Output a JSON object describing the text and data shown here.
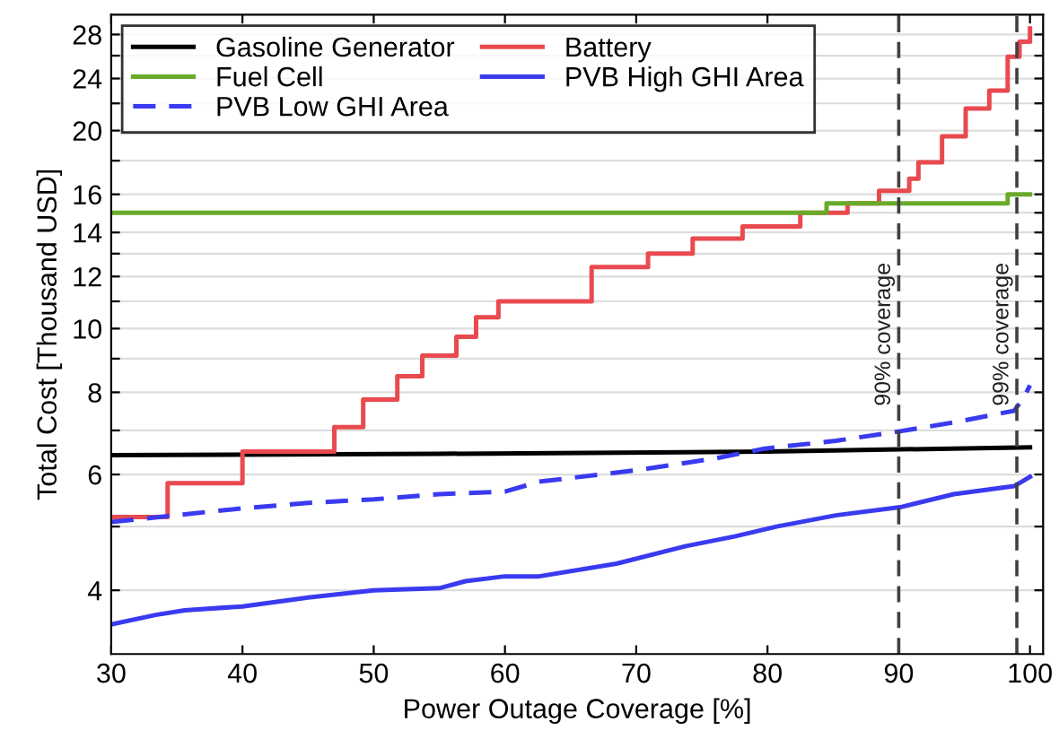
{
  "chart_data": {
    "type": "step",
    "xlabel": "Power Outage Coverage [%]",
    "ylabel": "Total Cost [Thousand USD]",
    "xlim": [
      30,
      101
    ],
    "xticks": [
      30,
      40,
      50,
      60,
      70,
      80,
      90,
      100
    ],
    "log": "y",
    "ylim": [
      3.2,
      30
    ],
    "yticks": [
      4,
      {
        "value": 5,
        "label": null
      },
      6,
      {
        "value": 7,
        "label": null
      },
      8,
      {
        "value": 9,
        "label": null
      },
      10,
      {
        "value": 11,
        "label": null
      },
      12,
      {
        "value": 13,
        "label": null
      },
      14,
      {
        "value": 15,
        "label": null
      },
      16,
      {
        "value": 18,
        "label": null
      },
      20,
      {
        "value": 22,
        "label": null
      },
      24,
      {
        "value": 26,
        "label": null
      },
      28
    ],
    "grid": "y",
    "legend": "top left",
    "marker": "none",
    "series": [
      {
        "name": "Gasoline Generator",
        "color": "#000000",
        "type": "line",
        "line_style": "solid",
        "x": [
          30,
          55,
          80,
          100
        ],
        "values": [
          6.42,
          6.45,
          6.5,
          6.6
        ]
      },
      {
        "name": "Battery",
        "color": "#e84a4f",
        "line_style": "solid",
        "x": [
          30,
          34.3,
          40,
          47,
          49.2,
          51.8,
          53.7,
          56.3,
          57.8,
          59.5,
          66.6,
          70.9,
          74.3,
          78.1,
          82.5,
          86.1,
          88.5,
          90.8,
          91.5,
          93.3,
          95.1,
          96.9,
          98.3,
          99.2,
          100
        ],
        "values": [
          5.17,
          5.82,
          6.5,
          7.08,
          7.8,
          8.46,
          9.1,
          9.72,
          10.4,
          11.0,
          12.4,
          13.0,
          13.7,
          14.3,
          15.0,
          15.5,
          16.2,
          16.9,
          17.9,
          19.6,
          21.6,
          23.0,
          25.9,
          27.3,
          28.6
        ]
      },
      {
        "name": "Fuel Cell",
        "color": "#6aaa2a",
        "line_style": "solid",
        "x": [
          30,
          84.5,
          98.3,
          100
        ],
        "values": [
          15.0,
          15.5,
          16.0,
          16.0
        ]
      },
      {
        "name": "PVB High GHI Area",
        "color": "#3a3af0",
        "type": "line",
        "line_style": "solid",
        "x": [
          30,
          33.4,
          35.6,
          40,
          45,
          50,
          55,
          57,
          60,
          62.6,
          68.5,
          73.8,
          77.5,
          80.7,
          85.2,
          90.1,
          94.2,
          98.8,
          100
        ],
        "values": [
          3.55,
          3.67,
          3.73,
          3.78,
          3.9,
          4.0,
          4.03,
          4.13,
          4.2,
          4.2,
          4.39,
          4.67,
          4.83,
          5.0,
          5.2,
          5.35,
          5.6,
          5.76,
          5.95
        ]
      },
      {
        "name": "PVB Low GHI Area",
        "color": "#3a3af0",
        "type": "line",
        "line_style": "dashed",
        "x": [
          30,
          40,
          45,
          50,
          55,
          60,
          62.6,
          70.3,
          76.1,
          79.8,
          85.2,
          90.1,
          94.2,
          98.8,
          99.6,
          100
        ],
        "values": [
          5.08,
          5.33,
          5.43,
          5.5,
          5.6,
          5.65,
          5.85,
          6.1,
          6.35,
          6.57,
          6.75,
          6.98,
          7.2,
          7.5,
          7.9,
          8.2
        ]
      }
    ],
    "ref_lines": [
      {
        "axis": "x",
        "value": 90,
        "label": "90% coverage",
        "color": "#404040",
        "line_style": "dashed"
      },
      {
        "axis": "x",
        "value": 99,
        "label": "99% coverage",
        "color": "#404040",
        "line_style": "dashed"
      }
    ]
  }
}
